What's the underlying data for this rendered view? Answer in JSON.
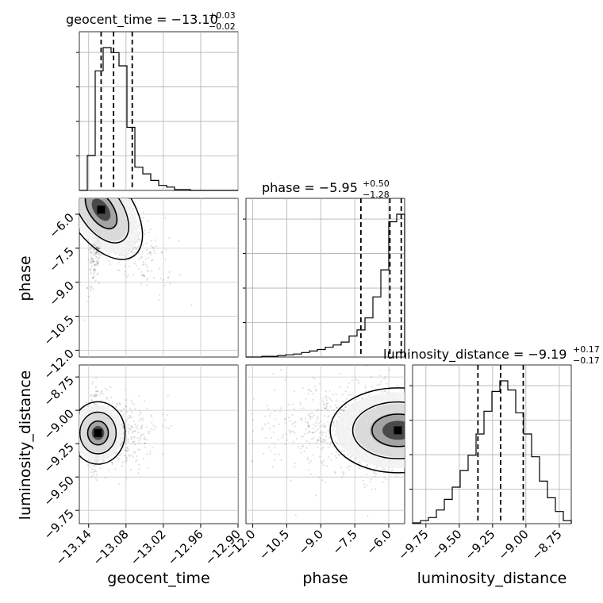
{
  "chart_data": {
    "type": "corner",
    "parameters": [
      "geocent_time",
      "phase",
      "luminosity_distance"
    ],
    "titles": [
      {
        "main": "geocent_time = −13.10",
        "sup": "+0.03",
        "sub": "−0.02"
      },
      {
        "main": "phase = −5.95",
        "sup": "+0.50",
        "sub": "−1.28"
      },
      {
        "main": "luminosity_distance = −9.19",
        "sup": "+0.17",
        "sub": "−0.17"
      }
    ],
    "xlabels": [
      "geocent_time",
      "phase",
      "luminosity_distance"
    ],
    "ylabels": [
      "",
      "phase",
      "luminosity_distance"
    ],
    "ranges": [
      [
        -13.155,
        -12.9
      ],
      [
        -12.3,
        -5.3
      ],
      [
        -9.85,
        -8.66
      ]
    ],
    "tick_values": [
      [
        -13.14,
        -13.08,
        -13.02,
        -12.96,
        -12.9
      ],
      [
        -12.0,
        -10.5,
        -9.0,
        -7.5,
        -6.0
      ],
      [
        -9.75,
        -9.5,
        -9.25,
        -9.0,
        -8.75
      ]
    ],
    "tick_labels": [
      [
        "−13.14",
        "−13.08",
        "−13.02",
        "−12.96",
        "−12.90"
      ],
      [
        "−12.0",
        "−10.5",
        "−9.0",
        "−7.5",
        "−6.0"
      ],
      [
        "−9.75",
        "−9.50",
        "−9.25",
        "−9.00",
        "−8.75"
      ]
    ],
    "quantiles": [
      [
        -13.12,
        -13.1,
        -13.07
      ],
      [
        -7.23,
        -5.95,
        -5.45
      ],
      [
        -9.36,
        -9.19,
        -9.02
      ]
    ],
    "histograms": [
      {
        "edges_start": -13.155,
        "bin_width": 0.01275,
        "counts": [
          0,
          0.21,
          0.72,
          0.86,
          0.83,
          0.75,
          0.38,
          0.14,
          0.1,
          0.06,
          0.03,
          0.02,
          0.005,
          0.005,
          0,
          0,
          0,
          0,
          0,
          0
        ],
        "grid": true
      },
      {
        "edges_start": -12.3,
        "bin_width": 0.35,
        "counts": [
          0,
          0,
          0.005,
          0.005,
          0.01,
          0.015,
          0.02,
          0.03,
          0.04,
          0.05,
          0.065,
          0.08,
          0.1,
          0.14,
          0.18,
          0.26,
          0.4,
          0.58,
          0.9,
          0.95
        ],
        "grid": true
      },
      {
        "edges_start": -9.85,
        "bin_width": 0.0595,
        "counts": [
          0.005,
          0.02,
          0.04,
          0.09,
          0.16,
          0.24,
          0.35,
          0.45,
          0.59,
          0.74,
          0.87,
          0.94,
          0.88,
          0.73,
          0.59,
          0.44,
          0.28,
          0.17,
          0.08,
          0.02
        ],
        "grid": true
      }
    ],
    "scatter_pairs": [
      {
        "x_param": "geocent_time",
        "y_param": "phase",
        "peak": [
          -13.12,
          -5.8
        ],
        "contours": true
      },
      {
        "x_param": "geocent_time",
        "y_param": "luminosity_distance",
        "peak": [
          -13.125,
          -9.17
        ],
        "contours": true
      },
      {
        "x_param": "phase",
        "y_param": "luminosity_distance",
        "peak": [
          -5.6,
          -9.15
        ],
        "contours": true
      }
    ],
    "grid": true
  }
}
